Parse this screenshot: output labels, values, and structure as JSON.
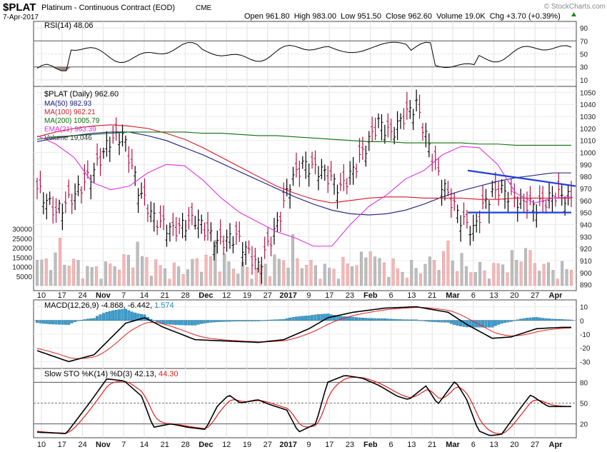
{
  "header": {
    "symbol": "$PLAT",
    "name": "Platinum - Continuous Contract (EOD)",
    "exchange": "CME",
    "date": "7-Apr-2017",
    "ohlc": "Open 961.80  High 983.00  Low 951.50  Close 962.60  Volume 19.0K  Chg +3.70 (+0.39%)",
    "watermark": "© StockCharts.com"
  },
  "panels": {
    "rsi": {
      "label": "RSI(14) 48.06",
      "ticks": [
        "90",
        "70",
        "50",
        "30",
        "10"
      ]
    },
    "price": {
      "label": "$PLAT (Daily) 962.60",
      "legend": [
        {
          "text": "MA(50) 982.93",
          "color": "#1a1a7a"
        },
        {
          "text": "MA(100) 962.21",
          "color": "#d11a2a"
        },
        {
          "text": "MA(200) 1005.79",
          "color": "#0a6e0a"
        },
        {
          "text": "EMA(21) 963.39",
          "color": "#e034e0"
        },
        {
          "text": "Volume 19,046",
          "color": "#333333"
        }
      ],
      "price_ticks": [
        "1050",
        "1040",
        "1030",
        "1020",
        "1010",
        "1000",
        "990",
        "980",
        "970",
        "960",
        "950",
        "940",
        "930",
        "920",
        "910",
        "900",
        "890"
      ],
      "volume_ticks": [
        "30000",
        "25000",
        "20000",
        "15000",
        "10000",
        "5000"
      ]
    },
    "macd": {
      "label_main": "MACD(12,26,9) -4.868, -6.442, ",
      "label_hist": "1.574",
      "ticks": [
        "10",
        "0",
        "-10",
        "-20",
        "-30"
      ]
    },
    "stoch": {
      "label_main": "Slow STO %K(14) %D(3) 42.13, ",
      "label_d": "44.30",
      "ticks": [
        "80",
        "50",
        "20"
      ]
    }
  },
  "x_axis_labels": [
    "10",
    "17",
    "24",
    "Nov",
    "7",
    "14",
    "21",
    "28",
    "Dec",
    "12",
    "19",
    "27",
    "2017",
    "9",
    "17",
    "23",
    "Feb",
    "6",
    "13",
    "21",
    "Mar",
    "6",
    "13",
    "20",
    "27",
    "Apr"
  ],
  "chart_data": {
    "type": "line",
    "title": "$PLAT Platinum - Continuous Contract (EOD)",
    "series": [
      {
        "name": "MA(50)",
        "values": [
          1009,
          1012,
          1014,
          1016,
          1017,
          1017,
          1014,
          1010,
          1004,
          998,
          991,
          984,
          977,
          970,
          963,
          957,
          952,
          949,
          948,
          949,
          952,
          957,
          963,
          968,
          972,
          976,
          979,
          981,
          983,
          983
        ]
      },
      {
        "name": "MA(100)",
        "values": [
          1013,
          1017,
          1020,
          1022,
          1023,
          1022,
          1020,
          1016,
          1011,
          1004,
          996,
          988,
          980,
          972,
          966,
          961,
          958,
          960,
          962,
          963,
          963,
          962,
          962,
          962,
          961,
          961,
          962,
          962,
          962,
          962
        ]
      },
      {
        "name": "MA(200)",
        "values": [
          1011,
          1013,
          1014,
          1015,
          1016,
          1017,
          1017,
          1017,
          1017,
          1016,
          1016,
          1015,
          1014,
          1014,
          1013,
          1012,
          1011,
          1010,
          1009,
          1009,
          1008,
          1008,
          1008,
          1008,
          1007,
          1007,
          1006,
          1006,
          1006,
          1006
        ]
      },
      {
        "name": "EMA(21)",
        "values": [
          1014,
          1007,
          996,
          975,
          969,
          972,
          983,
          990,
          989,
          977,
          962,
          950,
          942,
          934,
          929,
          922,
          922,
          940,
          955,
          965,
          978,
          985,
          998,
          1005,
          1004,
          990,
          966,
          958,
          962,
          963
        ]
      }
    ],
    "price_ylim": [
      885,
      1055
    ],
    "volume_ylim": [
      0,
      34000
    ],
    "rsi_ylim": [
      0,
      100
    ],
    "macd_ylim": [
      -35,
      15
    ],
    "stoch_ylim": [
      0,
      100
    ],
    "trendlines": [
      {
        "label": "resistance",
        "from": 985,
        "to": 972
      },
      {
        "label": "support",
        "from": 950,
        "to": 950
      }
    ]
  }
}
